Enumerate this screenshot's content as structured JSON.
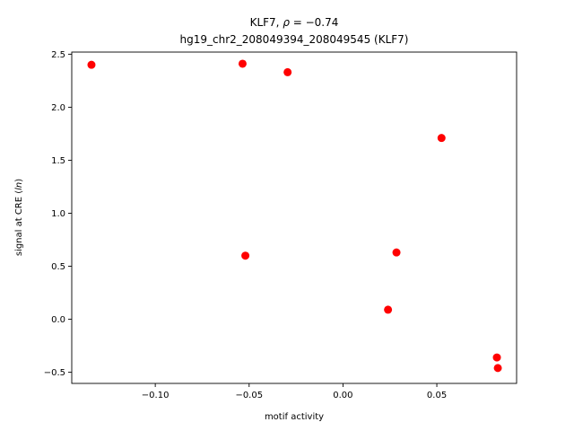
{
  "chart_data": {
    "type": "scatter",
    "title": "KLF7, ρ = −0.74",
    "subtitle": "hg19_chr2_208049394_208049545 (KLF7)",
    "xlabel": "motif activity",
    "ylabel": "signal at CRE (ln)",
    "xlim": [
      -0.1445,
      0.0925
    ],
    "ylim": [
      -0.605,
      2.52
    ],
    "xticks": [
      -0.1,
      -0.05,
      0.0,
      0.05
    ],
    "xtick_labels": [
      "−0.10",
      "−0.05",
      "0.00",
      "0.05"
    ],
    "yticks": [
      -0.5,
      0.0,
      0.5,
      1.0,
      1.5,
      2.0,
      2.5
    ],
    "ytick_labels": [
      "−0.5",
      "0.0",
      "0.5",
      "1.0",
      "1.5",
      "2.0",
      "2.5"
    ],
    "grid": false,
    "legend": false,
    "marker_color": "#ff0000",
    "points": [
      {
        "x": -0.134,
        "y": 2.4
      },
      {
        "x": -0.0535,
        "y": 2.41
      },
      {
        "x": -0.0295,
        "y": 2.33
      },
      {
        "x": -0.052,
        "y": 0.6
      },
      {
        "x": 0.0525,
        "y": 1.71
      },
      {
        "x": 0.0285,
        "y": 0.63
      },
      {
        "x": 0.024,
        "y": 0.09
      },
      {
        "x": 0.082,
        "y": -0.36
      },
      {
        "x": 0.0825,
        "y": -0.46
      }
    ]
  }
}
